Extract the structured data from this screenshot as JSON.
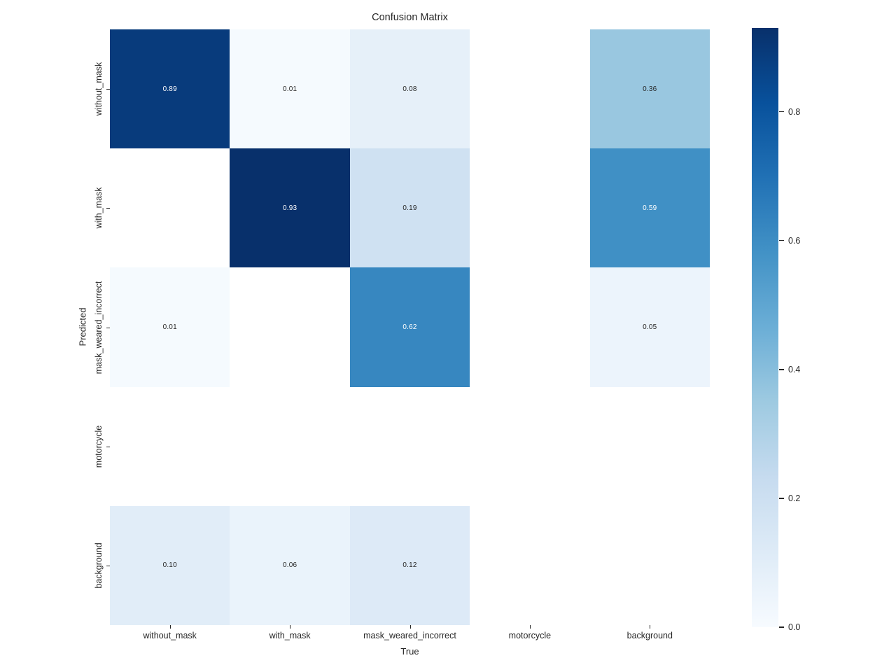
{
  "chart_data": {
    "type": "heatmap",
    "title": "Confusion Matrix",
    "xlabel": "True",
    "ylabel": "Predicted",
    "x_tick_labels": [
      "without_mask",
      "with_mask",
      "mask_weared_incorrect",
      "motorcycle",
      "background"
    ],
    "y_tick_labels": [
      "without_mask",
      "with_mask",
      "mask_weared_incorrect",
      "motorcycle",
      "background"
    ],
    "matrix": [
      [
        0.89,
        0.01,
        0.08,
        null,
        0.36
      ],
      [
        null,
        0.93,
        0.19,
        null,
        0.59
      ],
      [
        0.01,
        null,
        0.62,
        null,
        0.05
      ],
      [
        null,
        null,
        null,
        null,
        null
      ],
      [
        0.1,
        0.06,
        0.12,
        null,
        null
      ]
    ],
    "annotations": [
      [
        "0.89",
        "0.01",
        "0.08",
        "",
        "0.36"
      ],
      [
        "",
        "0.93",
        "0.19",
        "",
        "0.59"
      ],
      [
        "0.01",
        "",
        "0.62",
        "",
        "0.05"
      ],
      [
        "",
        "",
        "",
        "",
        ""
      ],
      [
        "0.10",
        "0.06",
        "0.12",
        "",
        ""
      ]
    ],
    "vmin": 0.0,
    "vmax": 0.93,
    "colormap": "Blues",
    "colormap_anchors": [
      {
        "pos": 0.0,
        "color": "#f7fbff"
      },
      {
        "pos": 0.125,
        "color": "#deebf7"
      },
      {
        "pos": 0.25,
        "color": "#c6dbef"
      },
      {
        "pos": 0.375,
        "color": "#9ecae1"
      },
      {
        "pos": 0.5,
        "color": "#6baed6"
      },
      {
        "pos": 0.625,
        "color": "#4292c6"
      },
      {
        "pos": 0.75,
        "color": "#2171b5"
      },
      {
        "pos": 0.875,
        "color": "#08519c"
      },
      {
        "pos": 1.0,
        "color": "#08306b"
      }
    ],
    "nan_color": "#ffffff",
    "colorbar_ticks": [
      {
        "label": "0.0",
        "value": 0.0
      },
      {
        "label": "0.2",
        "value": 0.2
      },
      {
        "label": "0.4",
        "value": 0.4
      },
      {
        "label": "0.6",
        "value": 0.6
      },
      {
        "label": "0.8",
        "value": 0.8
      }
    ],
    "legend_position": "right-colorbar",
    "grid": false
  },
  "colors": {
    "figure_bg": "#ffffff",
    "text": "#262626",
    "annot_dark": "#262626",
    "annot_light": "#ffffff"
  }
}
